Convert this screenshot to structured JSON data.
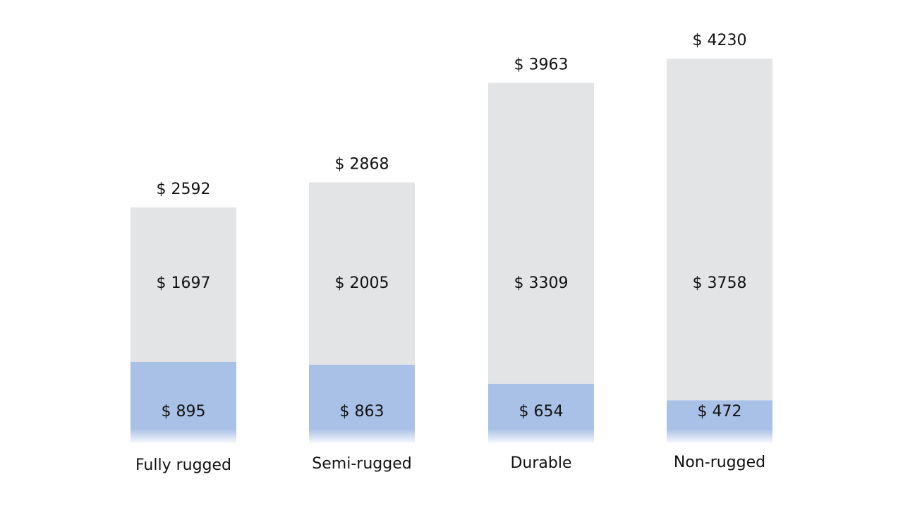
{
  "chart_data": {
    "type": "bar",
    "stacked": true,
    "categories": [
      "Fully rugged",
      "Semi-rugged",
      "Durable",
      "Non-rugged"
    ],
    "series": [
      {
        "values": [
          895,
          863,
          654,
          472
        ],
        "color": "#a9c1e6"
      },
      {
        "values": [
          1697,
          2005,
          3309,
          3758
        ],
        "color": "#e3e4e6"
      }
    ],
    "totals": [
      2592,
      2868,
      3963,
      4230
    ],
    "labels": {
      "bottom": [
        "$ 895",
        "$ 863",
        "$ 654",
        "$ 472"
      ],
      "top": [
        "$ 1697",
        "$ 2005",
        "$ 3309",
        "$ 3758"
      ],
      "total": [
        "$ 2592",
        "$ 2868",
        "$ 3963",
        "$ 4230"
      ]
    },
    "grid": false,
    "legend": "none"
  }
}
